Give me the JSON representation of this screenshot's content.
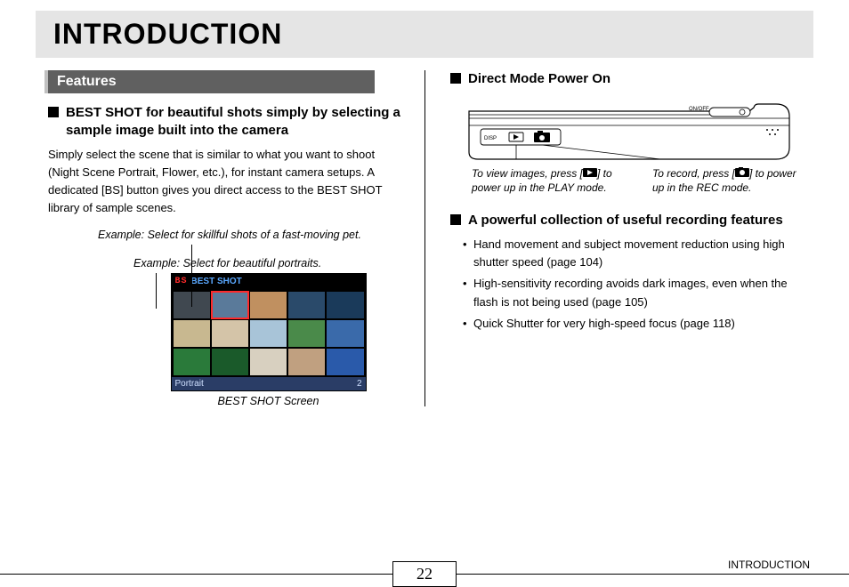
{
  "page": {
    "title": "INTRODUCTION",
    "number": "22",
    "footer_label": "INTRODUCTION"
  },
  "left": {
    "section_tab": "Features",
    "heading1": "BEST SHOT for beautiful shots simply by selecting a sample image built into the camera",
    "body1": "Simply select the scene that is similar to what you want to shoot (Night Scene Portrait, Flower, etc.), for instant camera setups. A dedicated [BS] button gives you direct access to the BEST SHOT library of sample scenes.",
    "example1": "Example: Select for skillful shots of a fast-moving pet.",
    "example2": "Example: Select for beautiful portraits.",
    "bs_screen": {
      "bs_label": "BS",
      "title": "BEST SHOT",
      "bottom_left": "Portrait",
      "bottom_right": "2",
      "caption": "BEST SHOT Screen",
      "thumb_colors": [
        "#404850",
        "#5a7a9a",
        "#c09060",
        "#2a4a6a",
        "#1a3a5a",
        "#c8b890",
        "#d4c4a8",
        "#a8c4d8",
        "#4a8a4a",
        "#3a6aaa",
        "#2a7a3a",
        "#1a5a2a",
        "#d8d0c0",
        "#c0a080",
        "#2a5aaa"
      ],
      "selected_index": 1
    }
  },
  "right": {
    "heading1": "Direct Mode Power On",
    "camera": {
      "onoff_label": "ON/OFF",
      "disp_label": "DISP",
      "caption_left_a": "To view images, press [",
      "caption_left_b": "] to power up in the PLAY mode.",
      "caption_right_a": "To record, press [",
      "caption_right_b": "] to power up in the REC mode."
    },
    "heading2": "A powerful collection of useful recording features",
    "features": [
      "Hand movement and subject movement reduction using high shutter speed (page 104)",
      "High-sensitivity recording avoids dark images, even when the flash is not being used (page 105)",
      "Quick Shutter for very high-speed focus (page 118)"
    ]
  }
}
